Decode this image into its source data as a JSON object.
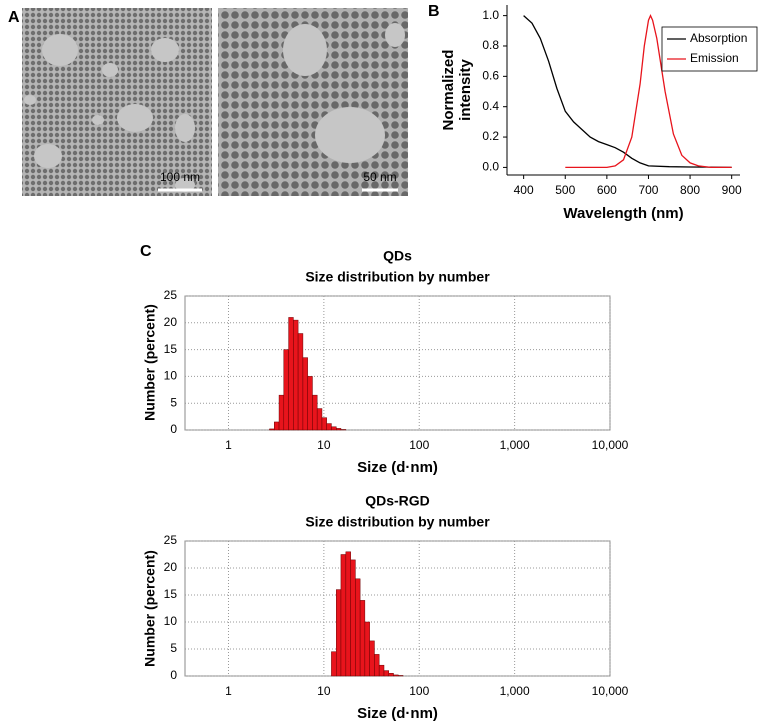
{
  "panel_labels": [
    "A",
    "B",
    "C"
  ],
  "micrographs": [
    {
      "scale_bar": "100 nm"
    },
    {
      "scale_bar": "50 nm"
    }
  ],
  "chart_data": [
    {
      "type": "line",
      "xlabel": "Wavelength (nm)",
      "ylabel": "Normalized intensity",
      "xlim": [
        360,
        920
      ],
      "xticks": [
        400,
        500,
        600,
        700,
        800,
        900
      ],
      "ylim": [
        -0.05,
        1.07
      ],
      "yticks": [
        {
          "value": 0,
          "label": "0.0"
        },
        {
          "value": 0.2,
          "label": "0.2"
        },
        {
          "value": 0.4,
          "label": "0.4"
        },
        {
          "value": 0.6,
          "label": "0.6"
        },
        {
          "value": 0.8,
          "label": "0.8"
        },
        {
          "value": 1,
          "label": "1.0"
        }
      ],
      "legend": "upper right",
      "grid": false,
      "series": [
        {
          "name": "Absorption",
          "color": "#000000",
          "x": [
            400,
            420,
            440,
            460,
            480,
            500,
            520,
            540,
            560,
            580,
            600,
            620,
            640,
            660,
            680,
            700,
            750,
            800,
            850,
            900
          ],
          "values": [
            1.0,
            0.95,
            0.85,
            0.7,
            0.52,
            0.37,
            0.3,
            0.25,
            0.2,
            0.17,
            0.15,
            0.13,
            0.1,
            0.06,
            0.03,
            0.01,
            0.005,
            0.003,
            0.002,
            0
          ]
        },
        {
          "name": "Emission",
          "color": "#e8141c",
          "x": [
            500,
            600,
            620,
            640,
            660,
            680,
            690,
            700,
            705,
            710,
            720,
            740,
            760,
            780,
            800,
            820,
            850,
            900
          ],
          "values": [
            0,
            0,
            0.01,
            0.05,
            0.2,
            0.55,
            0.8,
            0.97,
            1.0,
            0.97,
            0.85,
            0.5,
            0.22,
            0.08,
            0.03,
            0.01,
            0,
            0
          ]
        }
      ]
    },
    {
      "type": "histogram",
      "title": "QDs",
      "subtitle": "Size distribution by number",
      "xlabel": "Size (d·nm)",
      "ylabel": "Number (percent)",
      "xlog": true,
      "grid": true,
      "color": "#e8141c",
      "xlim": [
        0.35,
        10000
      ],
      "xticks": [
        1,
        10,
        100,
        {
          "value": 1000,
          "label": "1,000"
        },
        {
          "value": 10000,
          "label": "10,000"
        }
      ],
      "ylim": [
        0,
        25
      ],
      "yticks": [
        0,
        5,
        10,
        15,
        20,
        25
      ],
      "bins": [
        2.69,
        3.02,
        3.39,
        3.8,
        4.27,
        4.79,
        5.37,
        6.03,
        6.76,
        7.59,
        8.51,
        9.55,
        10.7,
        12.0,
        13.5,
        15.1,
        17.0
      ],
      "values": [
        0.2,
        1.5,
        6.5,
        15,
        21,
        20.5,
        18,
        13.5,
        10,
        6.5,
        4,
        2.3,
        1.2,
        0.6,
        0.3,
        0.1
      ]
    },
    {
      "type": "histogram",
      "title": "QDs-RGD",
      "subtitle": "Size distribution by number",
      "xlabel": "Size (d·nm)",
      "ylabel": "Number (percent)",
      "xlog": true,
      "grid": true,
      "color": "#e8141c",
      "xlim": [
        0.35,
        10000
      ],
      "xticks": [
        1,
        10,
        100,
        {
          "value": 1000,
          "label": "1,000"
        },
        {
          "value": 10000,
          "label": "10,000"
        }
      ],
      "ylim": [
        0,
        25
      ],
      "yticks": [
        0,
        5,
        10,
        15,
        20,
        25
      ],
      "bins": [
        12.0,
        13.5,
        15.1,
        17.0,
        19.1,
        21.4,
        24.0,
        26.9,
        30.2,
        33.9,
        38.0,
        42.7,
        47.9,
        53.7,
        60.3,
        67.6
      ],
      "values": [
        4.5,
        16,
        22.5,
        23,
        21.5,
        18,
        14,
        10,
        6.5,
        4,
        2,
        1,
        0.5,
        0.2,
        0.1
      ]
    }
  ]
}
